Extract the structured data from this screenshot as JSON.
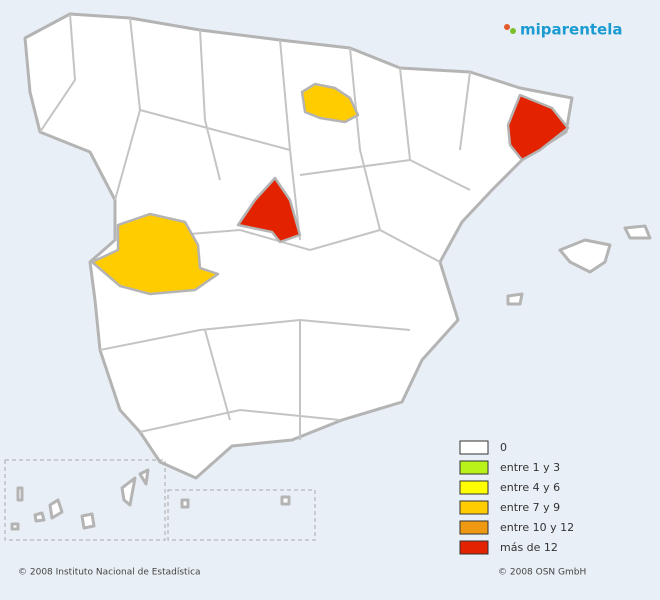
{
  "header": {
    "logo": "miparentela"
  },
  "legend": {
    "items": [
      {
        "label": "0",
        "color": "#ffffff"
      },
      {
        "label": "entre 1 y 3",
        "color": "#b8f21a"
      },
      {
        "label": "entre 4 y 6",
        "color": "#ffff00"
      },
      {
        "label": "entre 7 y 9",
        "color": "#ffcc00"
      },
      {
        "label": "entre 10 y 12",
        "color": "#ee9911"
      },
      {
        "label": "más de 12",
        "color": "#e32200"
      }
    ]
  },
  "footer": {
    "left": "© 2008 Instituto Nacional de Estadística",
    "right": "© 2008 OSN GmbH"
  }
}
